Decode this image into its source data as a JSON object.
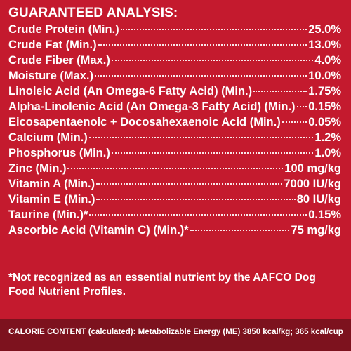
{
  "heading": "GUARANTEED ANALYSIS:",
  "rows": [
    {
      "label": "Crude Protein (Min.)",
      "value": "25.0%"
    },
    {
      "label": "Crude Fat (Min.)",
      "value": "13.0%"
    },
    {
      "label": "Crude Fiber (Max.)",
      "value": "4.0%"
    },
    {
      "label": "Moisture (Max.)",
      "value": "10.0%"
    },
    {
      "label": "Linoleic Acid (An Omega-6 Fatty Acid) (Min.)",
      "value": "1.75%"
    },
    {
      "label": "Alpha-Linolenic Acid (An Omega-3 Fatty Acid) (Min.)",
      "value": "0.15%"
    },
    {
      "label": "Eicosapentaenoic + Docosahexaenoic Acid (Min.)",
      "value": "0.05%"
    },
    {
      "label": "Calcium (Min.)",
      "value": "1.2%"
    },
    {
      "label": "Phosphorus (Min.)",
      "value": "1.0%"
    },
    {
      "label": "Zinc (Min.)",
      "value": "100 mg/kg"
    },
    {
      "label": "Vitamin A (Min.)",
      "value": "7000 IU/kg"
    },
    {
      "label": "Vitamin E (Min.)",
      "value": "80 IU/kg"
    },
    {
      "label": "Taurine (Min.)*",
      "value": "0.15%"
    },
    {
      "label": "Ascorbic Acid (Vitamin C) (Min.)*",
      "value": "75 mg/kg"
    }
  ],
  "footnote": "*Not recognized as an essential nutrient by the AAFCO Dog Food Nutrient Profiles.",
  "calorie": "CALORIE CONTENT (calculated): Metabolizable Energy (ME) 3850 kcal/kg; 365 kcal/cup",
  "colors": {
    "panel": "#c41a2e",
    "calorie_bar": "#7d121e",
    "text": "#ffffff"
  }
}
